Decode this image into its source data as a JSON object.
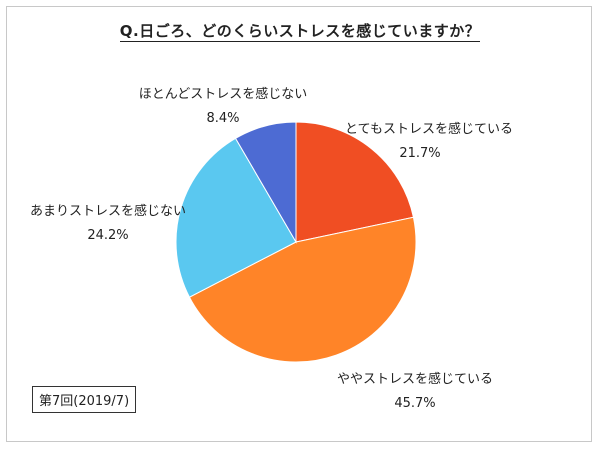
{
  "chart_data": {
    "type": "pie",
    "title": "Q.日ごろ、どのくらいストレスを感じていますか？",
    "slices": [
      {
        "label": "とてもストレスを感じている",
        "value": 21.7,
        "display": "21.7%",
        "color": "#f04e23"
      },
      {
        "label": "ややストレスを感じている",
        "value": 45.7,
        "display": "45.7%",
        "color": "#ff8428"
      },
      {
        "label": "あまりストレスを感じない",
        "value": 24.2,
        "display": "24.2%",
        "color": "#5ac8f0"
      },
      {
        "label": "ほとんどストレスを感じない",
        "value": 8.4,
        "display": "8.4%",
        "color": "#4d6bd3"
      }
    ],
    "note": "第7回(2019/7)",
    "start": "top",
    "direction": "clockwise"
  }
}
